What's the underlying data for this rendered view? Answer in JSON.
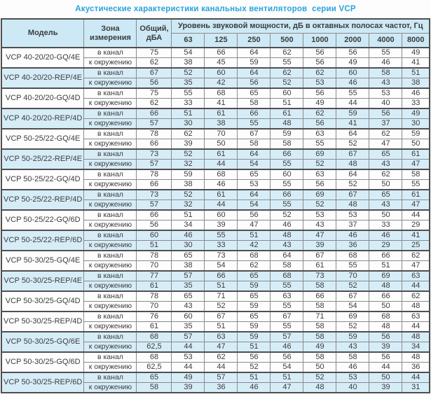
{
  "title": "Акустические характеристики канальных вентиляторов  серии VCP",
  "colors": {
    "title_text": "#29a3dc",
    "header_bg": "#cde9f6",
    "row_shaded_bg": "#d6edf8",
    "border_dark": "#4f4f4f",
    "border_mid": "#8a8a8a",
    "text": "#3c3c3c"
  },
  "table": {
    "headers": {
      "model": "Модель",
      "zone": "Зона\nизмерения",
      "total": "Общий,\nдБА",
      "spl_group": "Уровень звуковой мощности, дБ в октавных полосах частот, Гц",
      "frequencies": [
        "63",
        "125",
        "250",
        "500",
        "1000",
        "2000",
        "4000",
        "8000"
      ]
    },
    "zone_labels": [
      "в канал",
      "к окружению"
    ],
    "groups": [
      {
        "model": "VCP 40-20/20-GQ/4E",
        "shaded": false,
        "rows": [
          {
            "total": "75",
            "bands": [
              "54",
              "66",
              "64",
              "62",
              "56",
              "56",
              "55",
              "49"
            ]
          },
          {
            "total": "62",
            "bands": [
              "38",
              "45",
              "59",
              "55",
              "56",
              "49",
              "46",
              "41"
            ]
          }
        ]
      },
      {
        "model": "VCP 40-20/20-REP/4E",
        "shaded": true,
        "rows": [
          {
            "total": "67",
            "bands": [
              "52",
              "60",
              "64",
              "62",
              "62",
              "60",
              "58",
              "51"
            ]
          },
          {
            "total": "56",
            "bands": [
              "35",
              "42",
              "56",
              "52",
              "53",
              "46",
              "43",
              "38"
            ]
          }
        ]
      },
      {
        "model": "VCP 40-20/20-GQ/4D",
        "shaded": false,
        "rows": [
          {
            "total": "75",
            "bands": [
              "55",
              "68",
              "65",
              "60",
              "56",
              "55",
              "53",
              "46"
            ]
          },
          {
            "total": "62",
            "bands": [
              "33",
              "41",
              "58",
              "51",
              "49",
              "44",
              "40",
              "33"
            ]
          }
        ]
      },
      {
        "model": "VCP 40-20/20-REP/4D",
        "shaded": true,
        "rows": [
          {
            "total": "66",
            "bands": [
              "51",
              "61",
              "66",
              "61",
              "62",
              "59",
              "56",
              "49"
            ]
          },
          {
            "total": "57",
            "bands": [
              "30",
              "38",
              "55",
              "48",
              "56",
              "41",
              "37",
              "30"
            ]
          }
        ]
      },
      {
        "model": "VCP 50-25/22-GQ/4E",
        "shaded": false,
        "rows": [
          {
            "total": "78",
            "bands": [
              "62",
              "70",
              "67",
              "59",
              "63",
              "64",
              "62",
              "59"
            ]
          },
          {
            "total": "66",
            "bands": [
              "39",
              "50",
              "58",
              "58",
              "55",
              "52",
              "47",
              "50"
            ]
          }
        ]
      },
      {
        "model": "VCP 50-25/22-REP/4E",
        "shaded": true,
        "rows": [
          {
            "total": "73",
            "bands": [
              "52",
              "61",
              "64",
              "66",
              "69",
              "67",
              "65",
              "61"
            ]
          },
          {
            "total": "57",
            "bands": [
              "32",
              "44",
              "54",
              "55",
              "52",
              "48",
              "43",
              "47"
            ]
          }
        ]
      },
      {
        "model": "VCP 50-25/22-GQ/4D",
        "shaded": false,
        "rows": [
          {
            "total": "78",
            "bands": [
              "59",
              "68",
              "65",
              "60",
              "63",
              "64",
              "62",
              "58"
            ]
          },
          {
            "total": "66",
            "bands": [
              "38",
              "46",
              "53",
              "55",
              "56",
              "52",
              "50",
              "55"
            ]
          }
        ]
      },
      {
        "model": "VCP 50-25/22-REP/4D",
        "shaded": true,
        "rows": [
          {
            "total": "73",
            "bands": [
              "52",
              "61",
              "64",
              "66",
              "69",
              "67",
              "65",
              "61"
            ]
          },
          {
            "total": "57",
            "bands": [
              "32",
              "44",
              "54",
              "55",
              "52",
              "48",
              "43",
              "47"
            ]
          }
        ]
      },
      {
        "model": "VCP 50-25/22-GQ/6D",
        "shaded": false,
        "rows": [
          {
            "total": "66",
            "bands": [
              "51",
              "60",
              "56",
              "52",
              "53",
              "53",
              "50",
              "44"
            ]
          },
          {
            "total": "56",
            "bands": [
              "34",
              "39",
              "47",
              "46",
              "43",
              "37",
              "33",
              "29"
            ]
          }
        ]
      },
      {
        "model": "VCP 50-25/22-REP/6D",
        "shaded": true,
        "rows": [
          {
            "total": "60",
            "bands": [
              "46",
              "55",
              "51",
              "48",
              "47",
              "46",
              "46",
              "41"
            ]
          },
          {
            "total": "51",
            "bands": [
              "30",
              "33",
              "42",
              "43",
              "39",
              "36",
              "29",
              "25"
            ]
          }
        ]
      },
      {
        "model": "VCP 50-30/25-GQ/4E",
        "shaded": false,
        "rows": [
          {
            "total": "78",
            "bands": [
              "65",
              "73",
              "68",
              "64",
              "67",
              "68",
              "66",
              "62"
            ]
          },
          {
            "total": "70",
            "bands": [
              "38",
              "54",
              "62",
              "58",
              "61",
              "55",
              "51",
              "47"
            ]
          }
        ]
      },
      {
        "model": "VCP 50-30/25-REP/4E",
        "shaded": true,
        "rows": [
          {
            "total": "77",
            "bands": [
              "57",
              "66",
              "65",
              "68",
              "73",
              "70",
              "69",
              "63"
            ]
          },
          {
            "total": "61",
            "bands": [
              "35",
              "51",
              "59",
              "55",
              "58",
              "52",
              "48",
              "44"
            ]
          }
        ]
      },
      {
        "model": "VCP 50-30/25-GQ/4D",
        "shaded": false,
        "rows": [
          {
            "total": "78",
            "bands": [
              "65",
              "71",
              "65",
              "63",
              "66",
              "67",
              "66",
              "62"
            ]
          },
          {
            "total": "70",
            "bands": [
              "43",
              "52",
              "59",
              "55",
              "58",
              "54",
              "50",
              "48"
            ]
          }
        ]
      },
      {
        "model": "VCP 50-30/25-REP/4D",
        "shaded": false,
        "rows": [
          {
            "total": "76",
            "bands": [
              "60",
              "67",
              "65",
              "67",
              "71",
              "69",
              "68",
              "63"
            ]
          },
          {
            "total": "61",
            "bands": [
              "35",
              "51",
              "59",
              "55",
              "58",
              "52",
              "48",
              "44"
            ]
          }
        ]
      },
      {
        "model": "VCP 50-30/25-GQ/6E",
        "shaded": true,
        "rows": [
          {
            "total": "68",
            "bands": [
              "57",
              "63",
              "59",
              "57",
              "58",
              "59",
              "56",
              "48"
            ]
          },
          {
            "total": "62,5",
            "bands": [
              "44",
              "47",
              "51",
              "46",
              "49",
              "43",
              "39",
              "34"
            ]
          }
        ]
      },
      {
        "model": "VCP 50-30/25-GQ/6D",
        "shaded": false,
        "rows": [
          {
            "total": "68",
            "bands": [
              "53",
              "62",
              "56",
              "56",
              "58",
              "58",
              "56",
              "48"
            ]
          },
          {
            "total": "62,5",
            "bands": [
              "44",
              "44",
              "52",
              "54",
              "50",
              "46",
              "44",
              "36"
            ]
          }
        ]
      },
      {
        "model": "VCP 50-30/25-REP/6D",
        "shaded": true,
        "rows": [
          {
            "total": "65",
            "bands": [
              "49",
              "57",
              "51",
              "51",
              "52",
              "53",
              "50",
              "44"
            ]
          },
          {
            "total": "58",
            "bands": [
              "39",
              "36",
              "46",
              "47",
              "48",
              "40",
              "39",
              "31"
            ]
          }
        ]
      }
    ]
  }
}
